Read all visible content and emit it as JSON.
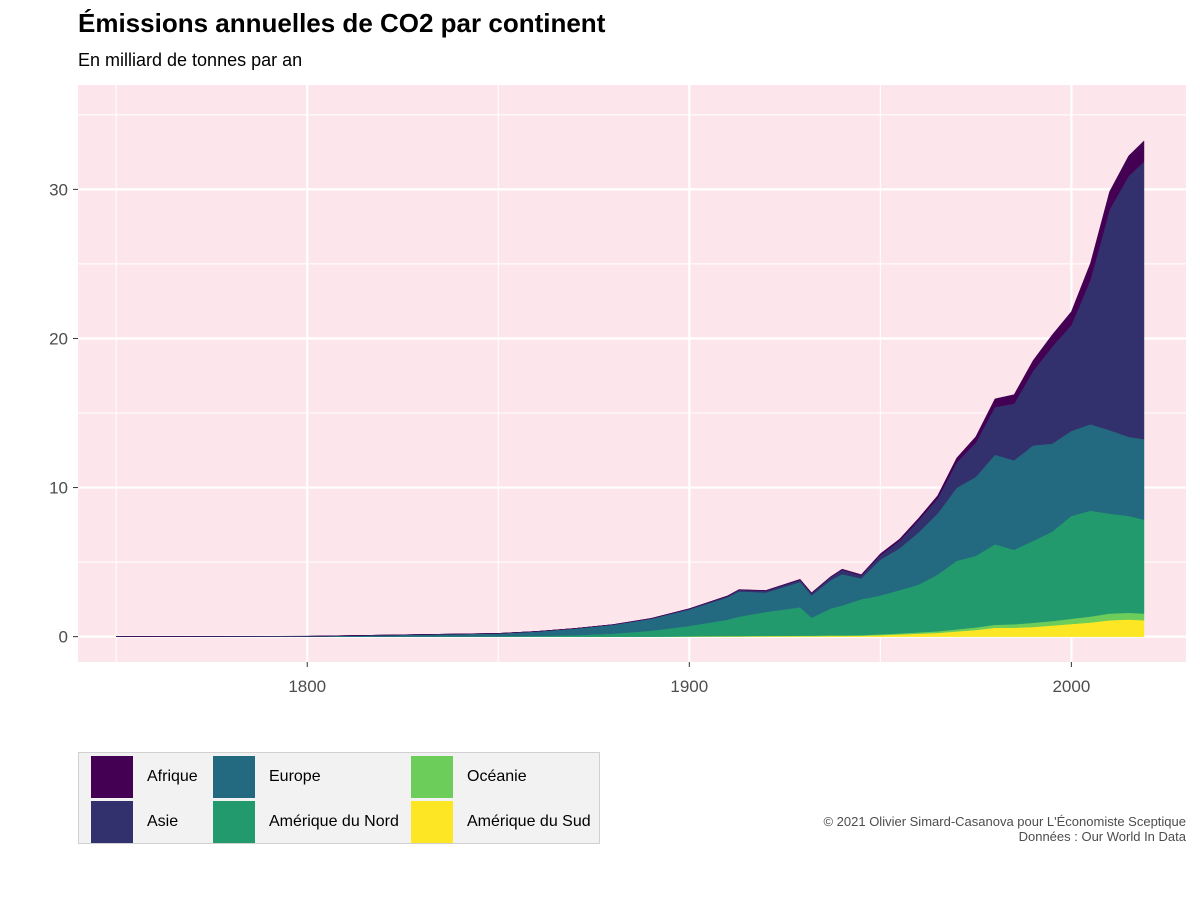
{
  "page": {
    "title": "Émissions annuelles de CO2 par continent",
    "subtitle": "En milliard de tonnes par an",
    "credit_line1": "© 2021 Olivier Simard-Casanova pour L'Économiste Sceptique",
    "credit_line2": "Données : Our World In Data"
  },
  "chart_data": {
    "type": "area",
    "stacked": true,
    "title": "Émissions annuelles de CO2 par continent",
    "subtitle": "En milliard de tonnes par an",
    "xlim": [
      1740,
      2030
    ],
    "ylim": [
      -1.7,
      37
    ],
    "x_ticks": [
      1800,
      1900,
      2000
    ],
    "y_ticks": [
      0,
      10,
      20,
      30
    ],
    "x_minor_ticks": [
      1750,
      1850,
      1950
    ],
    "y_minor_ticks": [
      5,
      15,
      25,
      35
    ],
    "background_color": "#fde6eb",
    "grid": true,
    "legend_position": "bottom-left",
    "x": [
      1750,
      1800,
      1850,
      1860,
      1870,
      1880,
      1890,
      1900,
      1910,
      1913,
      1920,
      1929,
      1932,
      1937,
      1940,
      1945,
      1950,
      1955,
      1960,
      1965,
      1970,
      1975,
      1980,
      1985,
      1990,
      1995,
      2000,
      2005,
      2010,
      2015,
      2019
    ],
    "series": [
      {
        "name": "Amérique du Sud",
        "color": "#fde725",
        "values": [
          0,
          0,
          0,
          0,
          0,
          0,
          0,
          0.01,
          0.02,
          0.02,
          0.03,
          0.04,
          0.04,
          0.05,
          0.05,
          0.06,
          0.1,
          0.15,
          0.2,
          0.25,
          0.35,
          0.45,
          0.6,
          0.6,
          0.65,
          0.75,
          0.85,
          0.95,
          1.1,
          1.15,
          1.1
        ]
      },
      {
        "name": "Océanie",
        "color": "#6ccd5a",
        "values": [
          0,
          0,
          0,
          0,
          0,
          0,
          0,
          0.01,
          0.02,
          0.02,
          0.03,
          0.03,
          0.03,
          0.04,
          0.04,
          0.05,
          0.06,
          0.07,
          0.09,
          0.11,
          0.14,
          0.17,
          0.2,
          0.23,
          0.28,
          0.3,
          0.35,
          0.4,
          0.45,
          0.45,
          0.45
        ]
      },
      {
        "name": "Amérique du Nord",
        "color": "#229a6e",
        "values": [
          0,
          0,
          0.02,
          0.05,
          0.1,
          0.2,
          0.4,
          0.7,
          1.1,
          1.3,
          1.6,
          1.9,
          1.2,
          1.8,
          2.0,
          2.4,
          2.6,
          2.9,
          3.2,
          3.8,
          4.6,
          4.8,
          5.4,
          5.0,
          5.5,
          6.0,
          6.9,
          7.1,
          6.7,
          6.5,
          6.3
        ]
      },
      {
        "name": "Europe",
        "color": "#23697f",
        "values": [
          0.01,
          0.03,
          0.2,
          0.3,
          0.45,
          0.6,
          0.8,
          1.1,
          1.5,
          1.7,
          1.3,
          1.7,
          1.5,
          1.9,
          2.1,
          1.4,
          2.4,
          2.8,
          3.5,
          4.1,
          4.9,
          5.3,
          6.0,
          6.0,
          6.4,
          5.9,
          5.7,
          5.8,
          5.6,
          5.3,
          5.4
        ]
      },
      {
        "name": "Asie",
        "color": "#33306e",
        "values": [
          0,
          0,
          0,
          0,
          0,
          0.01,
          0.02,
          0.05,
          0.08,
          0.1,
          0.12,
          0.15,
          0.15,
          0.2,
          0.3,
          0.2,
          0.3,
          0.5,
          0.8,
          1.0,
          1.7,
          2.3,
          3.2,
          3.8,
          5.0,
          6.5,
          7.1,
          9.7,
          14.8,
          17.5,
          18.6
        ]
      },
      {
        "name": "Afrique",
        "color": "#440154",
        "values": [
          0,
          0,
          0,
          0,
          0,
          0,
          0.01,
          0.01,
          0.02,
          0.02,
          0.02,
          0.03,
          0.03,
          0.04,
          0.04,
          0.05,
          0.1,
          0.12,
          0.15,
          0.2,
          0.3,
          0.4,
          0.55,
          0.6,
          0.7,
          0.8,
          0.9,
          1.1,
          1.2,
          1.35,
          1.4
        ]
      }
    ],
    "legend_order": [
      "Afrique",
      "Asie",
      "Europe",
      "Amérique du Nord",
      "Océanie",
      "Amérique du Sud"
    ]
  }
}
